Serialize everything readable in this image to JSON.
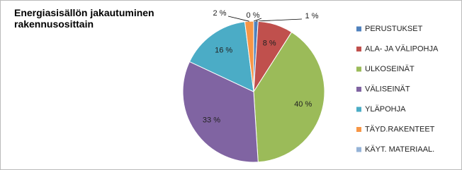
{
  "chart_data": {
    "type": "pie",
    "title": "Energiasisällön jakautuminen rakennusosittain",
    "categories": [
      "PERUSTUKSET",
      "ALA- JA VÄLIPOHJA",
      "ULKOSEINÄT",
      "VÄLISEINÄT",
      "YLÄPOHJA",
      "TÄYD.RAKENTEET",
      "KÄYT. MATERIAAL."
    ],
    "values": [
      1,
      8,
      40,
      33,
      16,
      2,
      0
    ],
    "value_labels": [
      "1 %",
      "8 %",
      "40 %",
      "33 %",
      "16 %",
      "2 %",
      "0 %"
    ],
    "colors": [
      "#4f81bd",
      "#c0504d",
      "#9bbb59",
      "#8064a2",
      "#4bacc6",
      "#f79646",
      "#95b3d7"
    ],
    "legend": "right"
  }
}
